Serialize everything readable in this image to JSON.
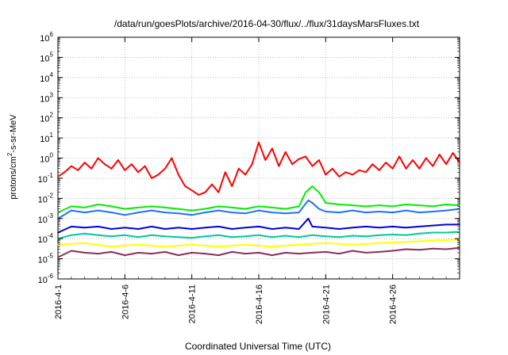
{
  "chart_data": {
    "type": "line",
    "title": "/data/run/goesPlots/archive/2016-04-30/flux/../flux/31daysMarsFluxes.txt",
    "xlabel": "Coordinated Universal Time (UTC)",
    "ylabel": {
      "pre": "protons/cm",
      "sup": "2",
      "post": "-s-sr-MeV"
    },
    "y_scale": "log",
    "ylim_exp": [
      -6,
      6
    ],
    "y_ticks": [
      {
        "base": "10",
        "exp": "6",
        "e": 6
      },
      {
        "base": "10",
        "exp": "5",
        "e": 5
      },
      {
        "base": "10",
        "exp": "4",
        "e": 4
      },
      {
        "base": "10",
        "exp": "3",
        "e": 3
      },
      {
        "base": "10",
        "exp": "2",
        "e": 2
      },
      {
        "base": "10",
        "exp": "1",
        "e": 1
      },
      {
        "base": "10",
        "exp": "0",
        "e": 0
      },
      {
        "base": "10",
        "exp": "-1",
        "e": -1
      },
      {
        "base": "10",
        "exp": "-2",
        "e": -2
      },
      {
        "base": "10",
        "exp": "-3",
        "e": -3
      },
      {
        "base": "10",
        "exp": "-4",
        "e": -4
      },
      {
        "base": "10",
        "exp": "-5",
        "e": -5
      },
      {
        "base": "10",
        "exp": "-6",
        "e": -6
      }
    ],
    "x_range_days": [
      0,
      30
    ],
    "x_ticks": [
      {
        "label": "2016-4-1",
        "day": 0
      },
      {
        "label": "2016-4-6",
        "day": 5
      },
      {
        "label": "2016-4-11",
        "day": 10
      },
      {
        "label": "2016-4-16",
        "day": 15
      },
      {
        "label": "2016-4-21",
        "day": 20
      },
      {
        "label": "2016-4-26",
        "day": 25
      }
    ],
    "grid": true,
    "series": [
      {
        "color": "#ff0000",
        "points": [
          [
            0,
            0.12
          ],
          [
            0.5,
            0.2
          ],
          [
            1,
            0.4
          ],
          [
            1.5,
            0.25
          ],
          [
            2,
            0.6
          ],
          [
            2.5,
            0.3
          ],
          [
            3,
            1.0
          ],
          [
            3.5,
            0.5
          ],
          [
            4,
            0.3
          ],
          [
            4.5,
            0.8
          ],
          [
            5,
            0.25
          ],
          [
            5.5,
            0.5
          ],
          [
            6,
            0.2
          ],
          [
            6.5,
            0.4
          ],
          [
            7,
            0.1
          ],
          [
            7.5,
            0.15
          ],
          [
            8,
            0.3
          ],
          [
            8.5,
            1.0
          ],
          [
            9,
            0.15
          ],
          [
            9.5,
            0.04
          ],
          [
            10,
            0.025
          ],
          [
            10.5,
            0.015
          ],
          [
            11,
            0.02
          ],
          [
            11.5,
            0.05
          ],
          [
            12,
            0.02
          ],
          [
            12.5,
            0.2
          ],
          [
            13,
            0.04
          ],
          [
            13.5,
            0.3
          ],
          [
            14,
            0.15
          ],
          [
            14.5,
            0.5
          ],
          [
            15,
            6.0
          ],
          [
            15.5,
            0.8
          ],
          [
            16,
            3.0
          ],
          [
            16.5,
            0.4
          ],
          [
            17,
            2.0
          ],
          [
            17.5,
            0.5
          ],
          [
            18,
            0.9
          ],
          [
            18.5,
            1.2
          ],
          [
            19,
            0.4
          ],
          [
            19.5,
            0.8
          ],
          [
            20,
            0.15
          ],
          [
            20.5,
            0.3
          ],
          [
            21,
            0.12
          ],
          [
            21.5,
            0.2
          ],
          [
            22,
            0.15
          ],
          [
            22.5,
            0.25
          ],
          [
            23,
            0.2
          ],
          [
            23.5,
            0.5
          ],
          [
            24,
            0.25
          ],
          [
            24.5,
            0.6
          ],
          [
            25,
            0.3
          ],
          [
            25.5,
            1.2
          ],
          [
            26,
            0.3
          ],
          [
            26.5,
            0.8
          ],
          [
            27,
            0.3
          ],
          [
            27.5,
            1.0
          ],
          [
            28,
            0.4
          ],
          [
            28.5,
            1.5
          ],
          [
            29,
            0.5
          ],
          [
            29.5,
            1.8
          ],
          [
            30,
            0.6
          ]
        ]
      },
      {
        "color": "#00ee00",
        "points": [
          [
            0,
            0.002
          ],
          [
            1,
            0.004
          ],
          [
            2,
            0.0035
          ],
          [
            3,
            0.005
          ],
          [
            4,
            0.004
          ],
          [
            5,
            0.003
          ],
          [
            6,
            0.0035
          ],
          [
            7,
            0.004
          ],
          [
            8,
            0.0035
          ],
          [
            9,
            0.003
          ],
          [
            10,
            0.0025
          ],
          [
            11,
            0.003
          ],
          [
            12,
            0.004
          ],
          [
            13,
            0.0035
          ],
          [
            14,
            0.003
          ],
          [
            15,
            0.004
          ],
          [
            16,
            0.0035
          ],
          [
            17,
            0.003
          ],
          [
            18,
            0.004
          ],
          [
            18.5,
            0.02
          ],
          [
            19,
            0.04
          ],
          [
            19.5,
            0.02
          ],
          [
            20,
            0.006
          ],
          [
            21,
            0.005
          ],
          [
            22,
            0.0045
          ],
          [
            23,
            0.004
          ],
          [
            24,
            0.0045
          ],
          [
            25,
            0.004
          ],
          [
            26,
            0.005
          ],
          [
            27,
            0.0045
          ],
          [
            28,
            0.004
          ],
          [
            29,
            0.005
          ],
          [
            30,
            0.0045
          ]
        ]
      },
      {
        "color": "#1e6fff",
        "points": [
          [
            0,
            0.001
          ],
          [
            1,
            0.0025
          ],
          [
            2,
            0.002
          ],
          [
            3,
            0.0025
          ],
          [
            4,
            0.002
          ],
          [
            5,
            0.0015
          ],
          [
            6,
            0.002
          ],
          [
            7,
            0.0025
          ],
          [
            8,
            0.002
          ],
          [
            9,
            0.0018
          ],
          [
            10,
            0.0015
          ],
          [
            11,
            0.002
          ],
          [
            12,
            0.0025
          ],
          [
            13,
            0.002
          ],
          [
            14,
            0.0018
          ],
          [
            15,
            0.0025
          ],
          [
            16,
            0.002
          ],
          [
            17,
            0.0018
          ],
          [
            18,
            0.002
          ],
          [
            18.7,
            0.008
          ],
          [
            19,
            0.006
          ],
          [
            19.5,
            0.003
          ],
          [
            20,
            0.0022
          ],
          [
            21,
            0.002
          ],
          [
            22,
            0.0025
          ],
          [
            23,
            0.002
          ],
          [
            24,
            0.0022
          ],
          [
            25,
            0.002
          ],
          [
            26,
            0.0025
          ],
          [
            27,
            0.002
          ],
          [
            28,
            0.0022
          ],
          [
            29,
            0.0025
          ],
          [
            30,
            0.003
          ]
        ]
      },
      {
        "color": "#0000dd",
        "points": [
          [
            0,
            0.0002
          ],
          [
            1,
            0.0004
          ],
          [
            2,
            0.00035
          ],
          [
            3,
            0.0004
          ],
          [
            4,
            0.0003
          ],
          [
            5,
            0.00035
          ],
          [
            6,
            0.0003
          ],
          [
            7,
            0.0004
          ],
          [
            8,
            0.0003
          ],
          [
            9,
            0.00035
          ],
          [
            10,
            0.0003
          ],
          [
            11,
            0.00035
          ],
          [
            12,
            0.0004
          ],
          [
            13,
            0.0003
          ],
          [
            14,
            0.00035
          ],
          [
            15,
            0.0004
          ],
          [
            16,
            0.0003
          ],
          [
            17,
            0.00035
          ],
          [
            18,
            0.0003
          ],
          [
            18.7,
            0.001
          ],
          [
            19,
            0.0004
          ],
          [
            20,
            0.00035
          ],
          [
            21,
            0.0003
          ],
          [
            22,
            0.00035
          ],
          [
            23,
            0.0004
          ],
          [
            24,
            0.00035
          ],
          [
            25,
            0.0004
          ],
          [
            26,
            0.00035
          ],
          [
            27,
            0.0004
          ],
          [
            28,
            0.00045
          ],
          [
            29,
            0.0005
          ],
          [
            30,
            0.0005
          ]
        ]
      },
      {
        "color": "#00c8a0",
        "points": [
          [
            0,
            0.0001
          ],
          [
            1,
            0.00015
          ],
          [
            2,
            0.00018
          ],
          [
            3,
            0.00015
          ],
          [
            4,
            0.00013
          ],
          [
            5,
            0.00015
          ],
          [
            6,
            0.00012
          ],
          [
            7,
            0.00015
          ],
          [
            8,
            0.00013
          ],
          [
            9,
            0.00012
          ],
          [
            10,
            0.00011
          ],
          [
            11,
            0.00013
          ],
          [
            12,
            0.00015
          ],
          [
            13,
            0.00012
          ],
          [
            14,
            0.00013
          ],
          [
            15,
            0.00015
          ],
          [
            16,
            0.00012
          ],
          [
            17,
            0.00014
          ],
          [
            18,
            0.00012
          ],
          [
            19,
            0.00015
          ],
          [
            20,
            0.00013
          ],
          [
            21,
            0.00012
          ],
          [
            22,
            0.00014
          ],
          [
            23,
            0.00013
          ],
          [
            24,
            0.00015
          ],
          [
            25,
            0.00016
          ],
          [
            26,
            0.00015
          ],
          [
            27,
            0.00018
          ],
          [
            28,
            0.0002
          ],
          [
            29,
            0.0002
          ],
          [
            30,
            0.00022
          ]
        ]
      },
      {
        "color": "#ffff00",
        "points": [
          [
            0,
            5e-05
          ],
          [
            2,
            6e-05
          ],
          [
            4,
            4e-05
          ],
          [
            6,
            5e-05
          ],
          [
            8,
            4e-05
          ],
          [
            10,
            5e-05
          ],
          [
            12,
            4e-05
          ],
          [
            14,
            5e-05
          ],
          [
            16,
            4e-05
          ],
          [
            18,
            5e-05
          ],
          [
            20,
            6e-05
          ],
          [
            22,
            5e-05
          ],
          [
            24,
            6e-05
          ],
          [
            26,
            7e-05
          ],
          [
            28,
            8e-05
          ],
          [
            30,
            9e-05
          ]
        ]
      },
      {
        "color": "#8b2c5a",
        "points": [
          [
            0,
            1.2e-05
          ],
          [
            1,
            2.5e-05
          ],
          [
            2,
            2e-05
          ],
          [
            3,
            1.8e-05
          ],
          [
            4,
            2.2e-05
          ],
          [
            5,
            1.5e-05
          ],
          [
            6,
            2e-05
          ],
          [
            7,
            1.8e-05
          ],
          [
            8,
            2.2e-05
          ],
          [
            9,
            1.5e-05
          ],
          [
            10,
            2e-05
          ],
          [
            11,
            1.8e-05
          ],
          [
            12,
            1.5e-05
          ],
          [
            13,
            2.2e-05
          ],
          [
            14,
            1.8e-05
          ],
          [
            15,
            2e-05
          ],
          [
            16,
            1.5e-05
          ],
          [
            17,
            2e-05
          ],
          [
            18,
            1.8e-05
          ],
          [
            19,
            2e-05
          ],
          [
            20,
            2.2e-05
          ],
          [
            21,
            1.8e-05
          ],
          [
            22,
            2.5e-05
          ],
          [
            23,
            2e-05
          ],
          [
            24,
            2.2e-05
          ],
          [
            25,
            2.5e-05
          ],
          [
            26,
            3e-05
          ],
          [
            27,
            2.8e-05
          ],
          [
            28,
            3.2e-05
          ],
          [
            29,
            3e-05
          ],
          [
            30,
            3.5e-05
          ]
        ]
      }
    ]
  }
}
